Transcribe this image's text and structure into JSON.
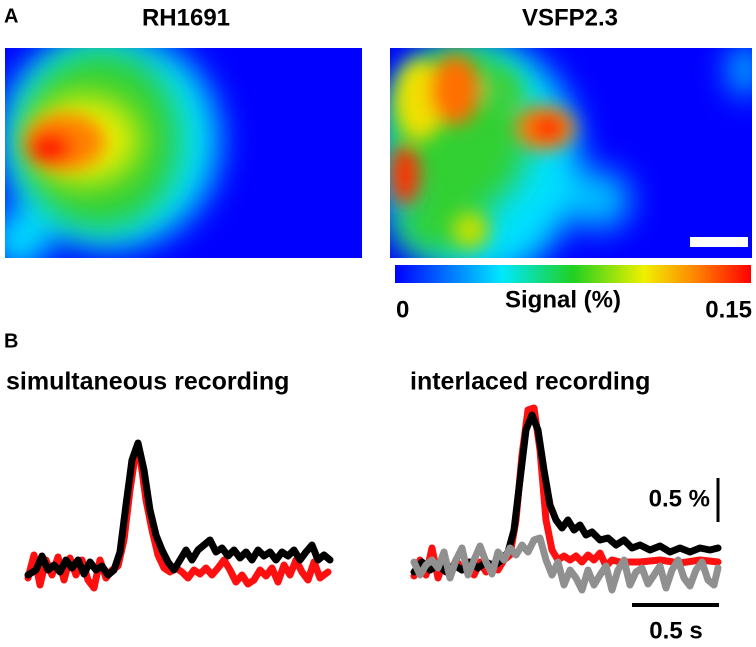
{
  "panel_a": {
    "label": "A",
    "left_title": "RH1691",
    "right_title": "VSFP2.3",
    "colorbar": {
      "min_label": "0",
      "title": "Signal (%)",
      "max_label": "0.15"
    }
  },
  "panel_b": {
    "label": "B",
    "left_title": "simultaneous recording",
    "right_title": "interlaced recording",
    "amplitude_scale": "0.5 %",
    "time_scale": "0.5 s"
  }
}
